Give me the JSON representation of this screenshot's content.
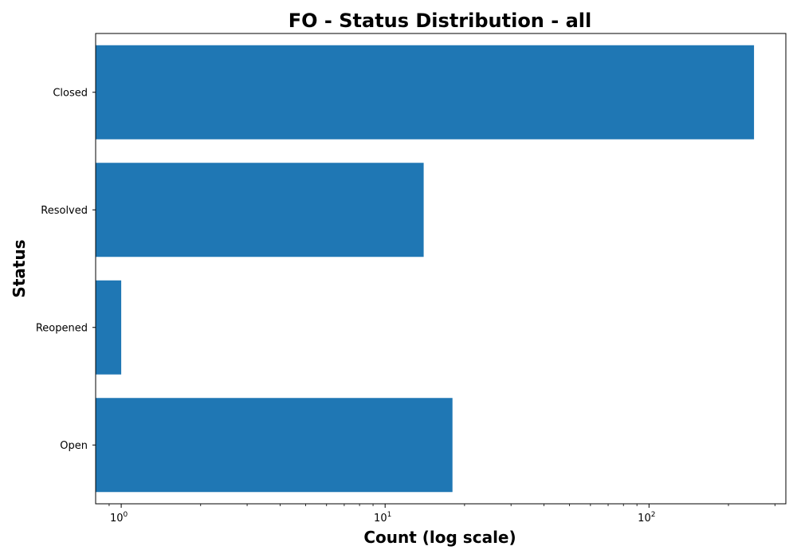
{
  "chart_data": {
    "type": "bar",
    "orientation": "horizontal",
    "title": "FO - Status Distribution - all",
    "xlabel": "Count (log scale)",
    "ylabel": "Status",
    "x_scale": "log",
    "xlim": [
      0.8,
      330
    ],
    "x_ticks": [
      {
        "value": 1,
        "base": "10",
        "exp": "0"
      },
      {
        "value": 10,
        "base": "10",
        "exp": "1"
      },
      {
        "value": 100,
        "base": "10",
        "exp": "2"
      }
    ],
    "categories": [
      "Closed",
      "Resolved",
      "Reopened",
      "Open"
    ],
    "values": [
      250,
      14,
      1,
      18
    ],
    "bar_color": "#1f77b4",
    "grid": false,
    "legend": "none"
  }
}
